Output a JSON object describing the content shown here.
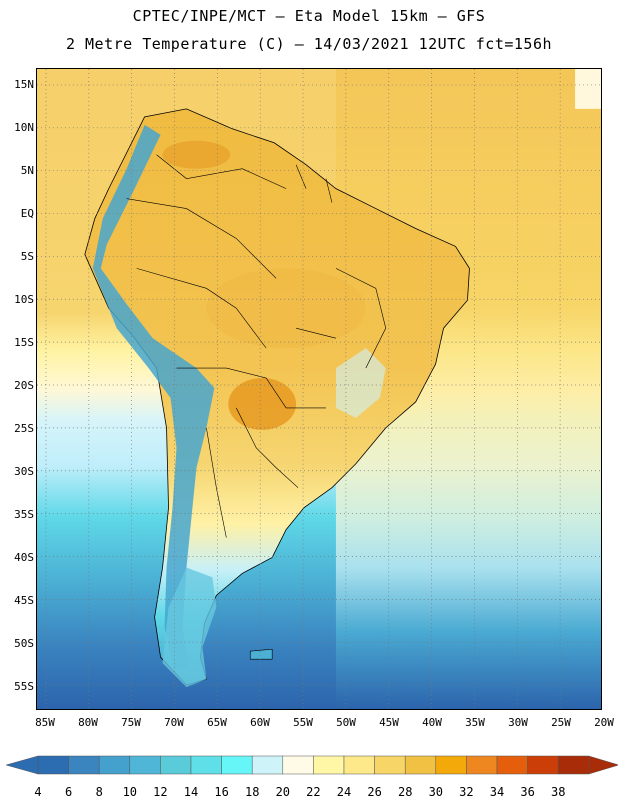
{
  "title_line1": "CPTEC/INPE/MCT –  Eta Model 15km – GFS",
  "title_line2": "2 Metre Temperature (C) – 14/03/2021 12UTC fct=156h",
  "lat_ticks": [
    "15N",
    "10N",
    "5N",
    "EQ",
    "5S",
    "10S",
    "15S",
    "20S",
    "25S",
    "30S",
    "35S",
    "40S",
    "45S",
    "50S",
    "55S"
  ],
  "lon_ticks": [
    "85W",
    "80W",
    "75W",
    "70W",
    "65W",
    "60W",
    "55W",
    "50W",
    "45W",
    "40W",
    "35W",
    "30W",
    "25W",
    "20W"
  ],
  "colorbar": {
    "labels": [
      "4",
      "6",
      "8",
      "10",
      "12",
      "14",
      "16",
      "18",
      "20",
      "22",
      "24",
      "26",
      "28",
      "30",
      "32",
      "34",
      "36",
      "38"
    ],
    "colors": [
      "#2c6cb0",
      "#3a84c0",
      "#44a0cc",
      "#4fb6d8",
      "#5accd9",
      "#5fe0e8",
      "#66f6f8",
      "#cef4fa",
      "#fffbe6",
      "#fff6a6",
      "#fde98a",
      "#f7d567",
      "#f0c142",
      "#f3a90a",
      "#ef8721",
      "#e45e0c",
      "#cc3e07",
      "#a82c08"
    ],
    "low_color": "#2c6cb0",
    "high_color": "#a82c08"
  },
  "legend_colors": {
    "ocean_tropical": "#f6cf6a",
    "ocean_subtropical": "#fff3a2",
    "ocean_cool": "#bfeefa",
    "ocean_cold": "#5fd8e8",
    "ocean_colder": "#4bb0d4",
    "ocean_coldest": "#2c64ac",
    "land_warm": "#f3c04a",
    "land_hot": "#e69a22",
    "andes": "#47a6cf"
  }
}
